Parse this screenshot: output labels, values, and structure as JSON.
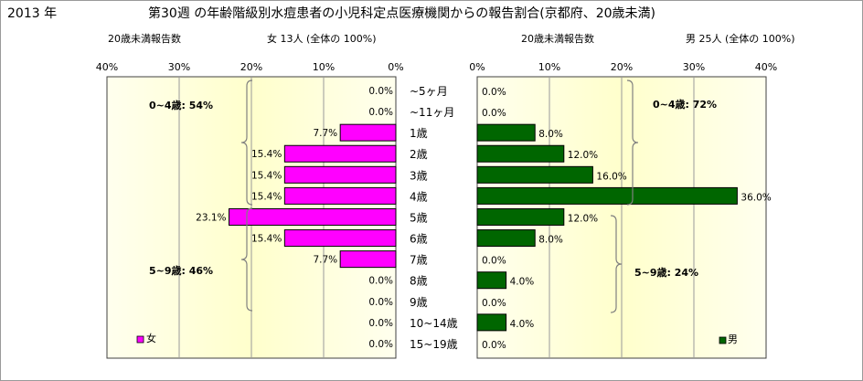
{
  "header": {
    "year": "2013 年",
    "title": "第30週 の年齢階級別水痘患者の小児科定点医療機関からの報告割合(京都府、20歳未満)"
  },
  "left_panel": {
    "subtitle_label": "20歳未満報告数",
    "subtitle_summary": "女 13人 (全体の 100%)",
    "annotation_top": "0~4歳: 54%",
    "annotation_bottom": "5~9歳: 46%",
    "legend_label": "女"
  },
  "right_panel": {
    "subtitle_label": "20歳未満報告数",
    "subtitle_summary": "男 25人 (全体の 100%)",
    "annotation_top": "0~4歳: 72%",
    "annotation_bottom": "5~9歳: 24%",
    "legend_label": "男"
  },
  "chart_data": [
    {
      "type": "bar",
      "orientation": "horizontal-reversed",
      "series": [
        {
          "name": "女",
          "values": [
            0,
            0,
            7.7,
            15.4,
            15.4,
            15.4,
            23.1,
            15.4,
            7.7,
            0,
            0,
            0,
            0
          ]
        }
      ],
      "labels": [
        "0.0%",
        "0.0%",
        "7.7%",
        "15.4%",
        "15.4%",
        "15.4%",
        "23.1%",
        "15.4%",
        "7.7%",
        "0.0%",
        "0.0%",
        "0.0%",
        "0.0%"
      ],
      "xlim": [
        0,
        40
      ],
      "ticks": [
        "40%",
        "30%",
        "20%",
        "10%",
        "0%"
      ],
      "colors": {
        "bar": "#ff00ff",
        "plot_bg": "#ffffcc",
        "plot_bg_edge": "#ffffee"
      }
    },
    {
      "type": "bar",
      "orientation": "horizontal",
      "series": [
        {
          "name": "男",
          "values": [
            0,
            0,
            8,
            12,
            16,
            36,
            12,
            8,
            0,
            4,
            0,
            4,
            0
          ]
        }
      ],
      "labels": [
        "0.0%",
        "0.0%",
        "8.0%",
        "12.0%",
        "16.0%",
        "36.0%",
        "12.0%",
        "8.0%",
        "0.0%",
        "4.0%",
        "0.0%",
        "4.0%",
        "0.0%"
      ],
      "xlim": [
        0,
        40
      ],
      "ticks": [
        "0%",
        "10%",
        "20%",
        "30%",
        "40%"
      ],
      "colors": {
        "bar": "#006600",
        "plot_bg": "#ffffcc",
        "plot_bg_edge": "#ffffee"
      }
    }
  ],
  "categories": [
    "~5ヶ月",
    "~11ヶ月",
    "1歳",
    "2歳",
    "3歳",
    "4歳",
    "5歳",
    "6歳",
    "7歳",
    "8歳",
    "9歳",
    "10~14歳",
    "15~19歳"
  ]
}
